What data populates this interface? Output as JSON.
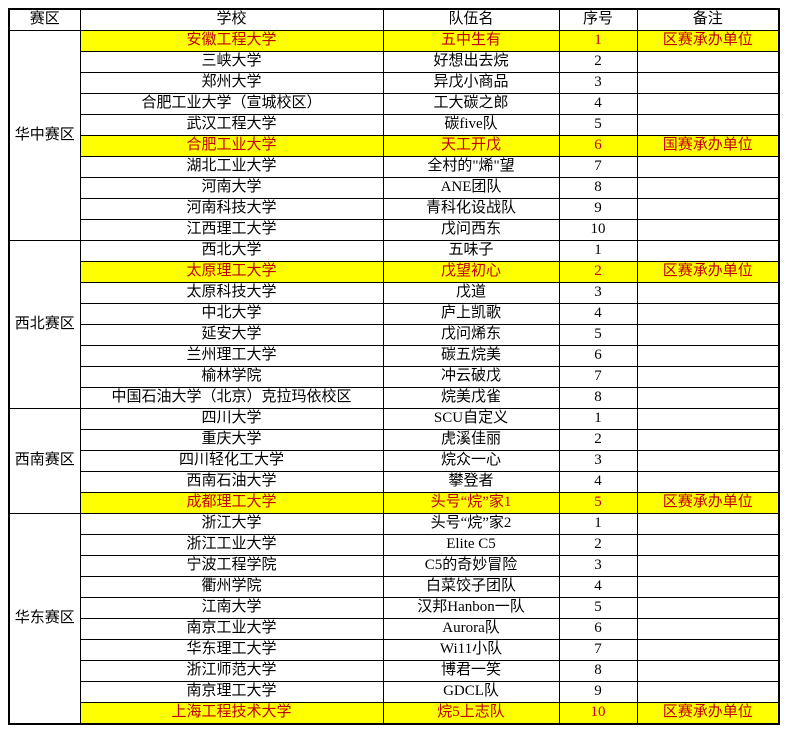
{
  "table": {
    "headers": [
      "赛区",
      "学校",
      "队伍名",
      "序号",
      "备注"
    ],
    "colors": {
      "highlight_bg": "#ffff00",
      "highlight_text": "#c00000",
      "border": "#000000",
      "text": "#000000",
      "background": "#ffffff"
    },
    "regions": [
      {
        "name": "华中赛区",
        "rows": [
          {
            "school": "安徽工程大学",
            "team": "五中生有",
            "num": "1",
            "note": "区赛承办单位",
            "highlight": true
          },
          {
            "school": "三峡大学",
            "team": "好想出去烷",
            "num": "2",
            "note": "",
            "highlight": false
          },
          {
            "school": "郑州大学",
            "team": "异戊小商品",
            "num": "3",
            "note": "",
            "highlight": false
          },
          {
            "school": "合肥工业大学（宣城校区）",
            "team": "工大碳之郎",
            "num": "4",
            "note": "",
            "highlight": false
          },
          {
            "school": "武汉工程大学",
            "team": "碳five队",
            "num": "5",
            "note": "",
            "highlight": false
          },
          {
            "school": "合肥工业大学",
            "team": "天工开戊",
            "num": "6",
            "note": "国赛承办单位",
            "highlight": true
          },
          {
            "school": "湖北工业大学",
            "team": "全村的\"烯\"望",
            "num": "7",
            "note": "",
            "highlight": false
          },
          {
            "school": "河南大学",
            "team": "ANE团队",
            "num": "8",
            "note": "",
            "highlight": false
          },
          {
            "school": "河南科技大学",
            "team": "青科化设战队",
            "num": "9",
            "note": "",
            "highlight": false
          },
          {
            "school": "江西理工大学",
            "team": "戊问西东",
            "num": "10",
            "note": "",
            "highlight": false
          }
        ]
      },
      {
        "name": "西北赛区",
        "rows": [
          {
            "school": "西北大学",
            "team": "五味子",
            "num": "1",
            "note": "",
            "highlight": false
          },
          {
            "school": "太原理工大学",
            "team": "戊望初心",
            "num": "2",
            "note": "区赛承办单位",
            "highlight": true
          },
          {
            "school": "太原科技大学",
            "team": "戊道",
            "num": "3",
            "note": "",
            "highlight": false
          },
          {
            "school": "中北大学",
            "team": "庐上凯歌",
            "num": "4",
            "note": "",
            "highlight": false
          },
          {
            "school": "延安大学",
            "team": "戊问烯东",
            "num": "5",
            "note": "",
            "highlight": false
          },
          {
            "school": "兰州理工大学",
            "team": "碳五烷美",
            "num": "6",
            "note": "",
            "highlight": false
          },
          {
            "school": "榆林学院",
            "team": "冲云破戊",
            "num": "7",
            "note": "",
            "highlight": false
          },
          {
            "school": "中国石油大学（北京）克拉玛依校区",
            "team": "烷美戊雀",
            "num": "8",
            "note": "",
            "highlight": false
          }
        ]
      },
      {
        "name": "西南赛区",
        "rows": [
          {
            "school": "四川大学",
            "team": "SCU自定义",
            "num": "1",
            "note": "",
            "highlight": false
          },
          {
            "school": "重庆大学",
            "team": "虎溪佳丽",
            "num": "2",
            "note": "",
            "highlight": false
          },
          {
            "school": "四川轻化工大学",
            "team": "烷众一心",
            "num": "3",
            "note": "",
            "highlight": false
          },
          {
            "school": "西南石油大学",
            "team": "攀登者",
            "num": "4",
            "note": "",
            "highlight": false
          },
          {
            "school": "成都理工大学",
            "team": "头号“烷”家1",
            "num": "5",
            "note": "区赛承办单位",
            "highlight": true
          }
        ]
      },
      {
        "name": "华东赛区",
        "rows": [
          {
            "school": "浙江大学",
            "team": "头号“烷”家2",
            "num": "1",
            "note": "",
            "highlight": false
          },
          {
            "school": "浙江工业大学",
            "team": "Elite C5",
            "num": "2",
            "note": "",
            "highlight": false
          },
          {
            "school": "宁波工程学院",
            "team": "C5的奇妙冒险",
            "num": "3",
            "note": "",
            "highlight": false
          },
          {
            "school": "衢州学院",
            "team": "白菜饺子团队",
            "num": "4",
            "note": "",
            "highlight": false
          },
          {
            "school": "江南大学",
            "team": "汉邦Hanbon一队",
            "num": "5",
            "note": "",
            "highlight": false
          },
          {
            "school": "南京工业大学",
            "team": "Aurora队",
            "num": "6",
            "note": "",
            "highlight": false
          },
          {
            "school": "华东理工大学",
            "team": "Wi11小队",
            "num": "7",
            "note": "",
            "highlight": false
          },
          {
            "school": "浙江师范大学",
            "team": "博君一笑",
            "num": "8",
            "note": "",
            "highlight": false
          },
          {
            "school": "南京理工大学",
            "team": "GDCL队",
            "num": "9",
            "note": "",
            "highlight": false
          },
          {
            "school": "上海工程技术大学",
            "team": "烷5上志队",
            "num": "10",
            "note": "区赛承办单位",
            "highlight": true
          }
        ]
      }
    ]
  }
}
